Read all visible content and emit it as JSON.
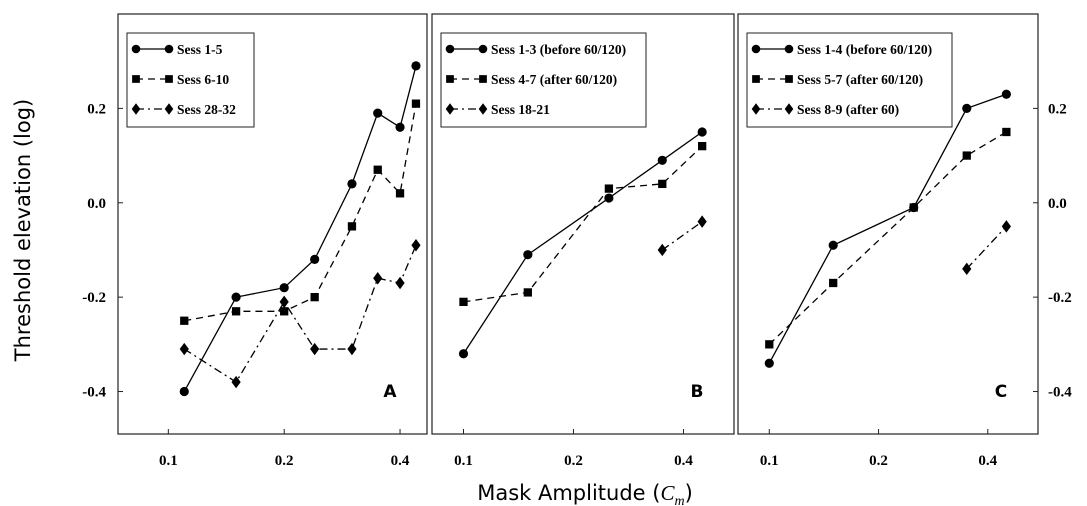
{
  "figure": {
    "ylabel": "Threshold elevation (log)",
    "xlabel_text": "Mask Amplitude (",
    "xlabel_math": "C",
    "xlabel_sub": "m",
    "xlabel_close": ")"
  },
  "chart_data": [
    {
      "type": "line",
      "panel_label": "A",
      "x_scale": "log",
      "xlim": [
        0.074,
        0.47
      ],
      "ylim": [
        -0.49,
        0.4
      ],
      "xticks": [
        0.1,
        0.2,
        0.4
      ],
      "xtick_labels": [
        "0.1",
        "0.2",
        "0.4"
      ],
      "yticks": [
        -0.4,
        -0.2,
        0.0,
        0.2
      ],
      "ytick_labels": [
        "-0.4",
        "-0.2",
        "0.0",
        "0.2"
      ],
      "y_tick_labels_side": "left",
      "legend_position": "top-left",
      "series": [
        {
          "name": "Sess 1-5",
          "marker": "circle",
          "dash": "solid",
          "x": [
            0.11,
            0.15,
            0.2,
            0.24,
            0.3,
            0.35,
            0.4,
            0.44
          ],
          "y": [
            -0.4,
            -0.2,
            -0.18,
            -0.12,
            0.04,
            0.19,
            0.16,
            0.29
          ]
        },
        {
          "name": "Sess 6-10",
          "marker": "square",
          "dash": "dashed",
          "x": [
            0.11,
            0.15,
            0.2,
            0.24,
            0.3,
            0.35,
            0.4,
            0.44
          ],
          "y": [
            -0.25,
            -0.23,
            -0.23,
            -0.2,
            -0.05,
            0.07,
            0.02,
            0.21
          ]
        },
        {
          "name": "Sess 28-32",
          "marker": "diamond",
          "dash": "dashdot",
          "x": [
            0.11,
            0.15,
            0.2,
            0.24,
            0.3,
            0.35,
            0.4,
            0.44
          ],
          "y": [
            -0.31,
            -0.38,
            -0.21,
            -0.31,
            -0.31,
            -0.16,
            -0.17,
            -0.09
          ]
        }
      ]
    },
    {
      "type": "line",
      "panel_label": "B",
      "x_scale": "log",
      "xlim": [
        0.082,
        0.55
      ],
      "ylim": [
        -0.49,
        0.4
      ],
      "xticks": [
        0.1,
        0.2,
        0.4
      ],
      "xtick_labels": [
        "0.1",
        "0.2",
        "0.4"
      ],
      "yticks": [],
      "ytick_labels": [],
      "y_tick_labels_side": "none",
      "legend_position": "top-left",
      "series": [
        {
          "name": "Sess 1-3 (before 60/120)",
          "marker": "circle",
          "dash": "solid",
          "x": [
            0.1,
            0.15,
            0.25,
            0.35,
            0.45
          ],
          "y": [
            -0.32,
            -0.11,
            0.01,
            0.09,
            0.15
          ]
        },
        {
          "name": "Sess 4-7 (after 60/120)",
          "marker": "square",
          "dash": "dashed",
          "x": [
            0.1,
            0.15,
            0.25,
            0.35,
            0.45
          ],
          "y": [
            -0.21,
            -0.19,
            0.03,
            0.04,
            0.12
          ]
        },
        {
          "name": "Sess 18-21",
          "marker": "diamond",
          "dash": "dashdot",
          "x": [
            0.35,
            0.45
          ],
          "y": [
            -0.1,
            -0.04
          ]
        }
      ]
    },
    {
      "type": "line",
      "panel_label": "C",
      "x_scale": "log",
      "xlim": [
        0.082,
        0.55
      ],
      "ylim": [
        -0.49,
        0.4
      ],
      "xticks": [
        0.1,
        0.2,
        0.4
      ],
      "xtick_labels": [
        "0.1",
        "0.2",
        "0.4"
      ],
      "yticks": [
        -0.4,
        -0.2,
        0.0,
        0.2
      ],
      "ytick_labels": [
        "-0.4",
        "-0.2",
        "0.0",
        "0.2"
      ],
      "y_tick_labels_side": "right",
      "legend_position": "top-left",
      "series": [
        {
          "name": "Sess 1-4 (before 60/120)",
          "marker": "circle",
          "dash": "solid",
          "x": [
            0.1,
            0.15,
            0.25,
            0.35,
            0.45
          ],
          "y": [
            -0.34,
            -0.09,
            -0.01,
            0.2,
            0.23
          ]
        },
        {
          "name": "Sess 5-7 (after 60/120)",
          "marker": "square",
          "dash": "dashed",
          "x": [
            0.1,
            0.15,
            0.25,
            0.35,
            0.45
          ],
          "y": [
            -0.3,
            -0.17,
            -0.01,
            0.1,
            0.15
          ]
        },
        {
          "name": "Sess 8-9 (after 60)",
          "marker": "diamond",
          "dash": "dashdot",
          "x": [
            0.35,
            0.45
          ],
          "y": [
            -0.14,
            -0.05
          ]
        }
      ]
    }
  ]
}
